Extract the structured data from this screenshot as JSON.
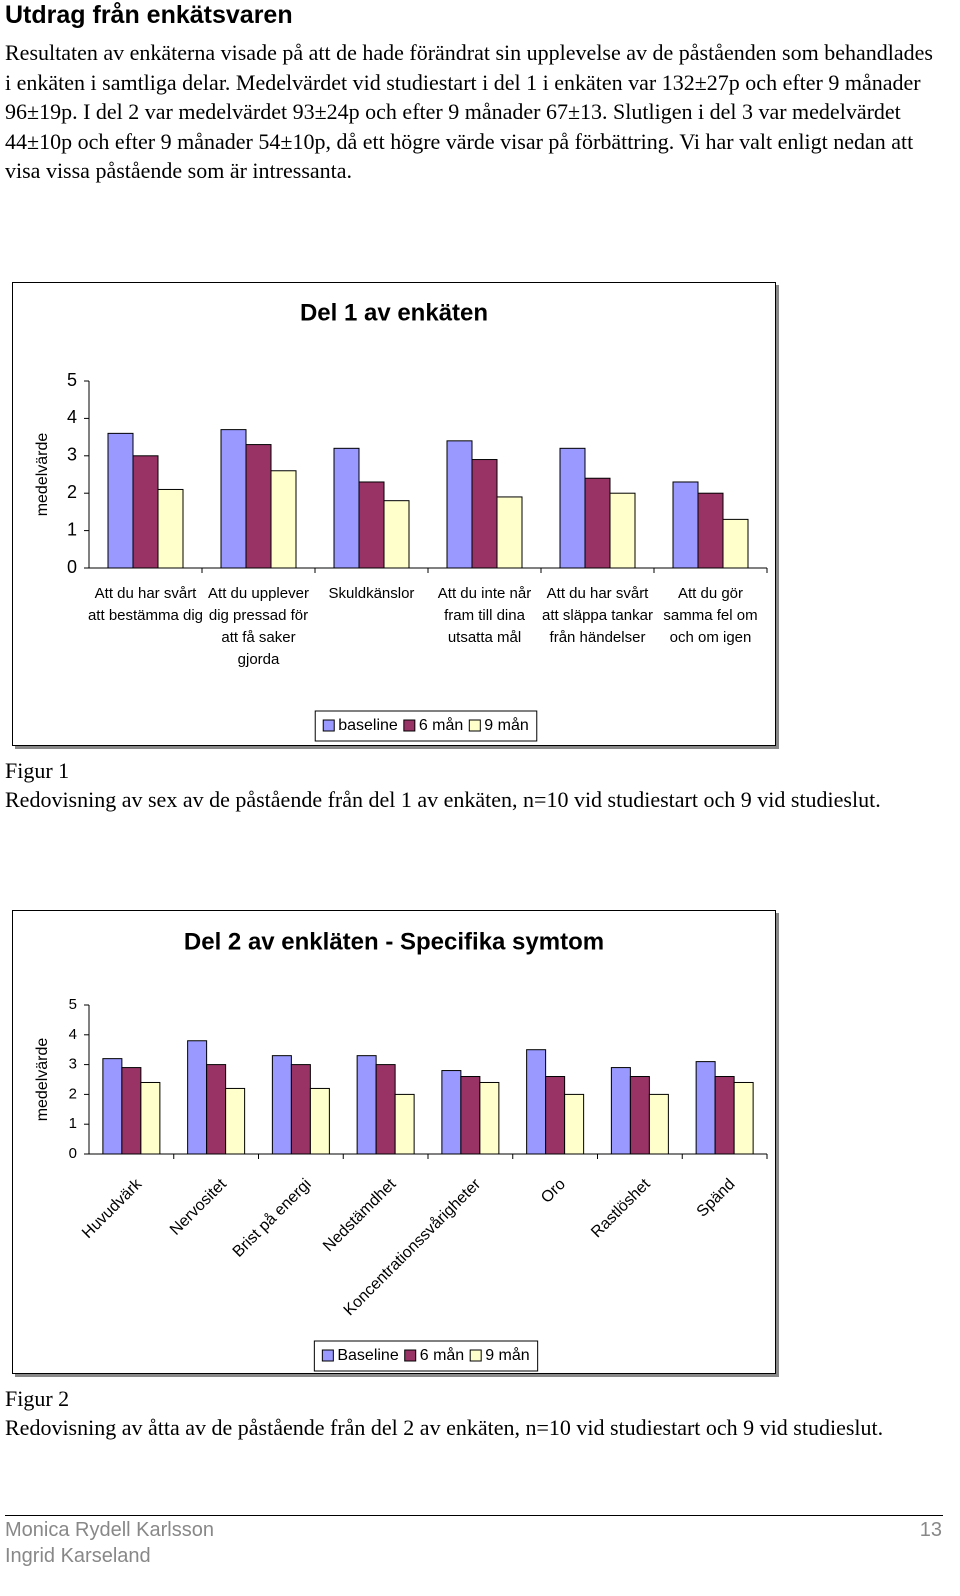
{
  "header": {
    "title": "Utdrag från enkätsvaren"
  },
  "paragraph": "Resultaten av enkäterna visade på att de hade förändrat sin upplevelse av de påståenden som behandlades i enkäten i samtliga delar. Medelvärdet vid studiestart i del 1 i enkäten var 132±27p och efter 9 månader 96±19p. I del 2 var medelvärdet 93±24p och efter 9 månader 67±13. Slutligen i del 3 var medelvärdet 44±10p och efter 9 månader 54±10p, då ett högre värde visar på förbättring. Vi har valt enligt nedan att visa vissa påstående som är intressanta.",
  "chart_data": [
    {
      "type": "bar",
      "title": "Del 1 av enkäten",
      "y_label": "medelvärde",
      "categories": [
        "Att du har svårt att bestämma dig",
        "Att du upplever dig pressad för att få saker gjorda",
        "Skuldkänslor",
        "Att du inte når fram till dina utsatta mål",
        "Att du har svårt att släppa tankar från händelser",
        "Att du gör samma fel om och om igen"
      ],
      "series": [
        {
          "name": "baseline",
          "color": "#9999ff",
          "values": [
            3.6,
            3.7,
            3.2,
            3.4,
            3.2,
            2.3
          ]
        },
        {
          "name": "6 mån",
          "color": "#993366",
          "values": [
            3.0,
            3.3,
            2.3,
            2.9,
            2.4,
            2.0
          ]
        },
        {
          "name": "9 mån",
          "color": "#ffffcc",
          "values": [
            2.1,
            2.6,
            1.8,
            1.9,
            2.0,
            1.3
          ]
        }
      ],
      "ylim": [
        0,
        5
      ],
      "yticks": [
        0,
        1,
        2,
        3,
        4,
        5
      ],
      "grid": false,
      "legend": "bottom",
      "x_label_orientation": "horizontal"
    },
    {
      "type": "bar",
      "title": "Del 2 av enkläten - Specifika symtom",
      "y_label": "medelvärde",
      "categories": [
        "Huvudvärk",
        "Nervositet",
        "Brist på energi",
        "Nedstämdhet",
        "Koncentrationssvårigheter",
        "Oro",
        "Rastlöshet",
        "Spänd"
      ],
      "series": [
        {
          "name": "Baseline",
          "color": "#9999ff",
          "values": [
            3.2,
            3.8,
            3.3,
            3.3,
            2.8,
            3.5,
            2.9,
            3.1
          ]
        },
        {
          "name": "6 mån",
          "color": "#993366",
          "values": [
            2.9,
            3.0,
            3.0,
            3.0,
            2.6,
            2.6,
            2.6,
            2.6
          ]
        },
        {
          "name": "9 mån",
          "color": "#ffffcc",
          "values": [
            2.4,
            2.2,
            2.2,
            2.0,
            2.4,
            2.0,
            2.0,
            2.4
          ]
        }
      ],
      "ylim": [
        0,
        5
      ],
      "yticks": [
        0,
        1,
        2,
        3,
        4,
        5
      ],
      "grid": false,
      "legend": "bottom",
      "x_label_orientation": "diagonal"
    }
  ],
  "figures": [
    {
      "label": "Figur 1",
      "caption": "Redovisning av sex av de påstående från del 1 av enkäten, n=10 vid studiestart och 9 vid studieslut."
    },
    {
      "label": "Figur 2",
      "caption": "Redovisning av åtta av de påstående från del 2 av enkäten, n=10 vid studiestart och 9 vid studieslut."
    }
  ],
  "footer": {
    "authors": [
      "Monica Rydell Karlsson",
      "Ingrid Karseland"
    ],
    "page": "13"
  }
}
